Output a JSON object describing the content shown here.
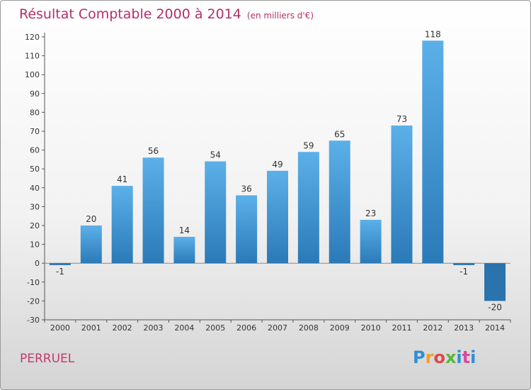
{
  "header": {
    "title": "Résultat Comptable 2000 à 2014",
    "subtitle": "(en milliers d'€)"
  },
  "footer": {
    "town": "PERRUEL",
    "logo_letters": [
      "P",
      "r",
      "o",
      "x",
      "i",
      "t",
      "i"
    ]
  },
  "chart_data": {
    "type": "bar",
    "title": "Résultat Comptable 2000 à 2014",
    "subtitle": "(en milliers d'€)",
    "xlabel": "",
    "ylabel": "",
    "categories": [
      "2000",
      "2001",
      "2002",
      "2003",
      "2004",
      "2005",
      "2006",
      "2007",
      "2008",
      "2009",
      "2010",
      "2011",
      "2012",
      "2013",
      "2014"
    ],
    "values": [
      -1,
      20,
      41,
      56,
      14,
      54,
      36,
      49,
      59,
      65,
      23,
      73,
      118,
      -1,
      -20
    ],
    "labels": [
      "-1",
      "20",
      "41",
      "56",
      "14",
      "54",
      "36",
      "49",
      "59",
      "65",
      "23",
      "73",
      "118",
      "-1",
      "-20"
    ],
    "ylim": [
      -30,
      120
    ],
    "yticks": [
      -30,
      -20,
      -10,
      0,
      10,
      20,
      30,
      40,
      50,
      60,
      70,
      80,
      90,
      100,
      110,
      120
    ],
    "grid": false,
    "colors": {
      "bar_top": "#5cb0e8",
      "bar_bottom": "#2a7ab8",
      "negative": "#2a73ad",
      "axis": "#555555"
    }
  }
}
